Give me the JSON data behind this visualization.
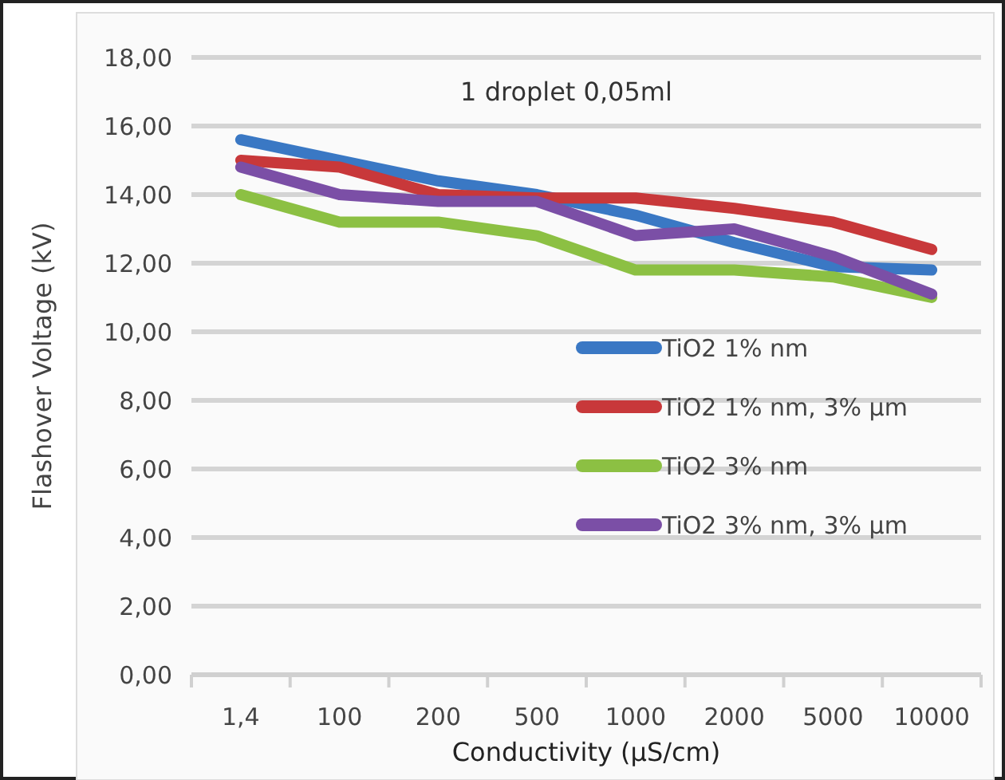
{
  "chart_data": {
    "type": "line",
    "title": "1 droplet 0,05ml",
    "xlabel": "Conductivity (µS/cm)",
    "ylabel": "Flashover Voltage (kV)",
    "categories": [
      "1,4",
      "100",
      "200",
      "500",
      "1000",
      "2000",
      "5000",
      "10000"
    ],
    "series": [
      {
        "name": "TiO2 1% nm",
        "color": "#3a78c4",
        "values": [
          15.6,
          15.0,
          14.4,
          14.0,
          13.4,
          12.6,
          11.9,
          11.8
        ]
      },
      {
        "name": "TiO2 1% nm, 3% µm",
        "color": "#c8383a",
        "values": [
          15.0,
          14.8,
          14.0,
          13.9,
          13.9,
          13.6,
          13.2,
          12.4
        ]
      },
      {
        "name": "TiO2 3% nm",
        "color": "#8cc043",
        "values": [
          14.0,
          13.2,
          13.2,
          12.8,
          11.8,
          11.8,
          11.6,
          11.0
        ]
      },
      {
        "name": "TiO2 3% nm, 3% µm",
        "color": "#7b4fa6",
        "values": [
          14.8,
          14.0,
          13.8,
          13.8,
          12.8,
          13.0,
          12.2,
          11.1
        ]
      }
    ],
    "ylim": [
      0,
      18
    ],
    "yticks": [
      {
        "value": 0,
        "label": "0,00"
      },
      {
        "value": 2,
        "label": "2,00"
      },
      {
        "value": 4,
        "label": "4,00"
      },
      {
        "value": 6,
        "label": "6,00"
      },
      {
        "value": 8,
        "label": "8,00"
      },
      {
        "value": 10,
        "label": "10,00"
      },
      {
        "value": 12,
        "label": "12,00"
      },
      {
        "value": 14,
        "label": "14,00"
      },
      {
        "value": 16,
        "label": "16,00"
      },
      {
        "value": 18,
        "label": "18,00"
      }
    ],
    "grid": "y",
    "legend": "right",
    "marker": "none",
    "line_style": "solid"
  }
}
